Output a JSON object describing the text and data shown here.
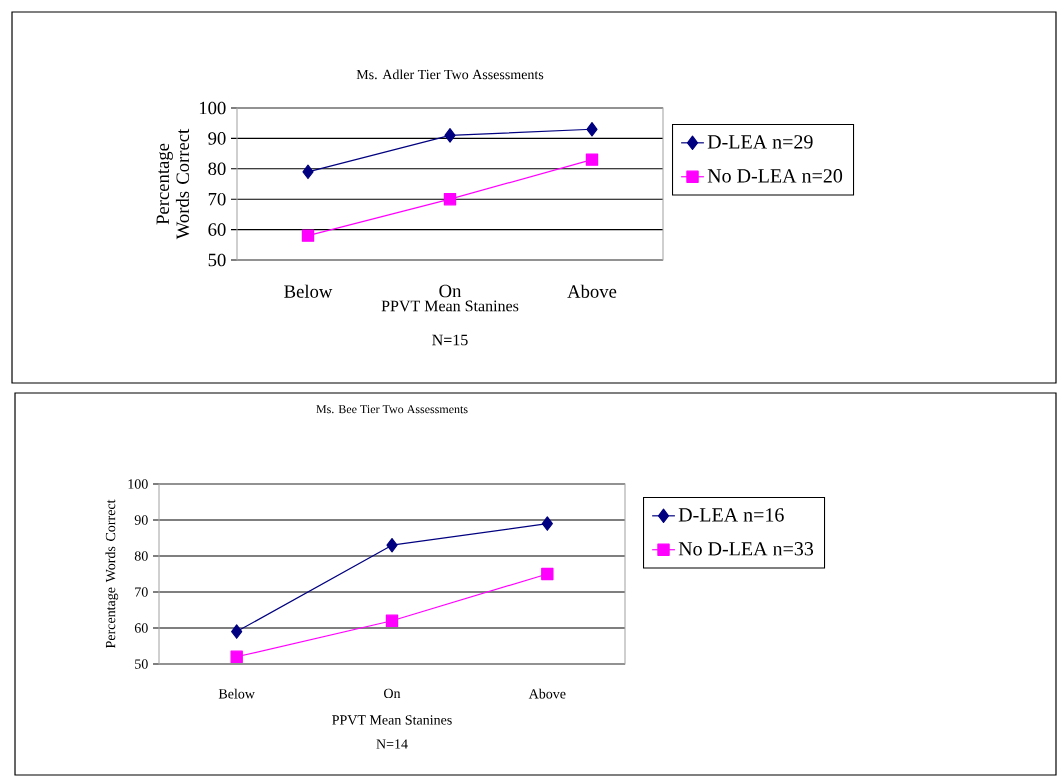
{
  "chart_data": [
    {
      "type": "line",
      "title": "Ms. Adler Tier Two Assessments",
      "xlabel": "PPVT Mean Stanines",
      "ylabel": "Percentage Words Correct",
      "annotations": [
        "N=15"
      ],
      "categories": [
        "Below",
        "On",
        "Above"
      ],
      "ylim": [
        50,
        100
      ],
      "yticks": [
        50,
        60,
        70,
        80,
        90,
        100
      ],
      "grid": "y",
      "legend": "right",
      "series": [
        {
          "name": "D-LEA n=29",
          "color": "#000080",
          "marker": "diamond",
          "values": [
            79,
            91,
            93
          ]
        },
        {
          "name": "No D-LEA n=20",
          "color": "#ff00ff",
          "marker": "square",
          "values": [
            58,
            70,
            83
          ]
        }
      ]
    },
    {
      "type": "line",
      "title": "Ms. Bee Tier Two Assessments",
      "xlabel": "PPVT Mean Stanines",
      "ylabel": "Percentage Words Correct",
      "annotations": [
        "N=14"
      ],
      "categories": [
        "Below",
        "On",
        "Above"
      ],
      "ylim": [
        50,
        100
      ],
      "yticks": [
        50,
        60,
        70,
        80,
        90,
        100
      ],
      "grid": "y",
      "legend": "right",
      "series": [
        {
          "name": "D-LEA n=16",
          "color": "#000080",
          "marker": "diamond",
          "values": [
            59,
            83,
            89
          ]
        },
        {
          "name": "No D-LEA n=33",
          "color": "#ff00ff",
          "marker": "square",
          "values": [
            52,
            62,
            75
          ]
        }
      ]
    }
  ]
}
